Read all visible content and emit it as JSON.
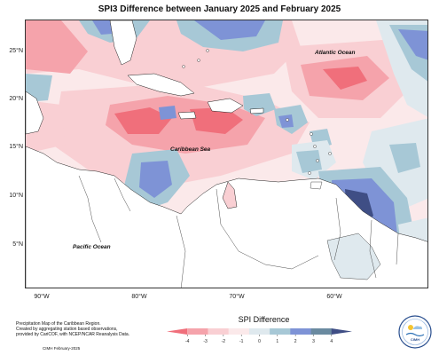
{
  "map": {
    "title": "SPI3 Difference between January 2025 and February 2025",
    "lat_labels": [
      "25°N",
      "20°N",
      "15°N",
      "10°N",
      "5°N"
    ],
    "lon_labels": [
      "90°W",
      "80°W",
      "70°W",
      "60°W"
    ],
    "region_labels": {
      "atlantic": "Atlantic Ocean",
      "caribbean": "Caribbean Sea",
      "pacific": "Pacific Ocean"
    }
  },
  "legend": {
    "title": "SPI Difference",
    "ticks": [
      "-4",
      "-3",
      "-2",
      "-1",
      "0",
      "1",
      "2",
      "3",
      "4"
    ],
    "colors": [
      "#f06f7b",
      "#f5a3ab",
      "#f9cfd3",
      "#fbe9ea",
      "#dfe9ee",
      "#a7c8d6",
      "#7e93d6",
      "#6a8aa0",
      "#3f4e85"
    ]
  },
  "caption": {
    "lines": [
      "Precipitation Map of the Caribbean Region.",
      "Created by aggregating station based observations,",
      "provided by CariCOF, with NCEP/NCAR Reanalysis Data."
    ],
    "credit": "CIMH February-2025"
  },
  "logo": {
    "text": "CIMH"
  }
}
